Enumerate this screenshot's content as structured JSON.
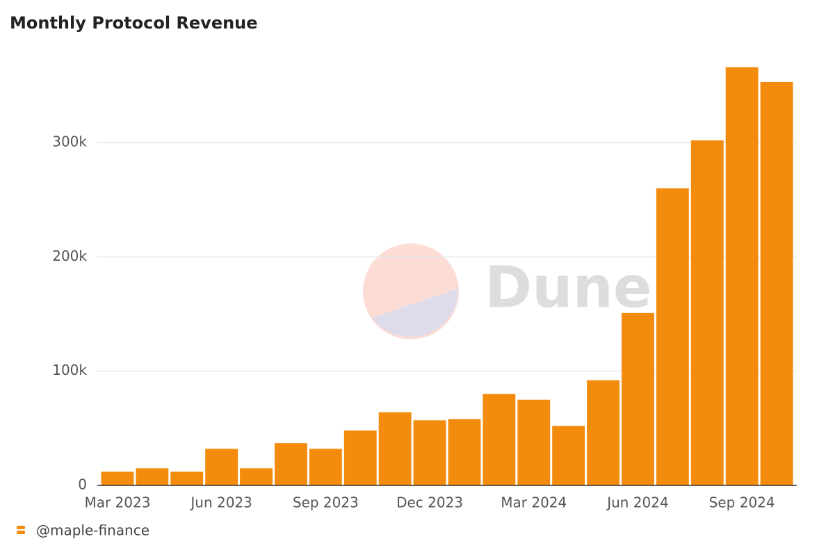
{
  "chart_data": {
    "type": "bar",
    "title": "Monthly Protocol Revenue",
    "categories": [
      "Mar 2023",
      null,
      null,
      "Jun 2023",
      null,
      null,
      "Sep 2023",
      null,
      null,
      "Dec 2023",
      null,
      null,
      "Mar 2024",
      null,
      null,
      "Jun 2024",
      null,
      null,
      "Sep 2024",
      null
    ],
    "values": [
      12000,
      15000,
      12000,
      32000,
      15000,
      37000,
      32000,
      48000,
      64000,
      57000,
      58000,
      80000,
      75000,
      52000,
      92000,
      151000,
      260000,
      302000,
      366000,
      353000
    ],
    "color": "#f38b0c",
    "ylim": [
      0,
      370000
    ],
    "yticks": [
      0,
      {
        "value": 100000,
        "label": "100k"
      },
      {
        "value": 200000,
        "label": "200k"
      },
      {
        "value": 300000,
        "label": "300k"
      }
    ],
    "grid": true,
    "watermark": "Dune",
    "source": "@maple-finance"
  }
}
